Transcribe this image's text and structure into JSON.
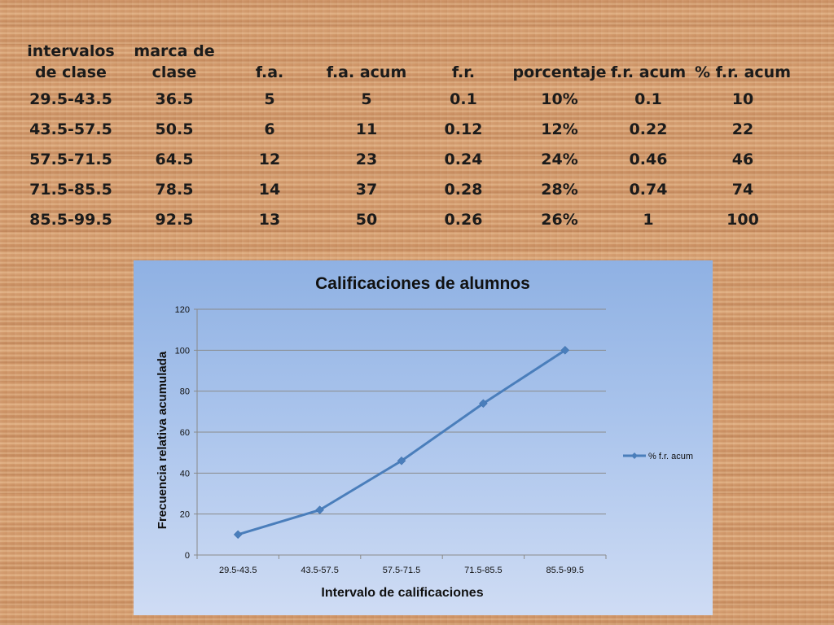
{
  "table": {
    "headers": [
      [
        "intervalos",
        "de clase"
      ],
      [
        "marca de",
        "clase"
      ],
      [
        "",
        "f.a."
      ],
      [
        "",
        "f.a. acum"
      ],
      [
        "",
        "f.r."
      ],
      [
        "",
        "porcentaje"
      ],
      [
        "",
        "f.r. acum"
      ],
      [
        "",
        "% f.r. acum"
      ]
    ],
    "rows": [
      [
        "29.5-43.5",
        "36.5",
        "5",
        "5",
        "0.1",
        "10%",
        "0.1",
        "10"
      ],
      [
        "43.5-57.5",
        "50.5",
        "6",
        "11",
        "0.12",
        "12%",
        "0.22",
        "22"
      ],
      [
        "57.5-71.5",
        "64.5",
        "12",
        "23",
        "0.24",
        "24%",
        "0.46",
        "46"
      ],
      [
        "71.5-85.5",
        "78.5",
        "14",
        "37",
        "0.28",
        "28%",
        "0.74",
        "74"
      ],
      [
        "85.5-99.5",
        "92.5",
        "13",
        "50",
        "0.26",
        "26%",
        "1",
        "100"
      ]
    ]
  },
  "chart_data": {
    "type": "line",
    "title": "Calificaciones de alumnos",
    "xlabel": "Intervalo de calificaciones",
    "ylabel": "Frecuencia relativa acumulada",
    "categories": [
      "29.5-43.5",
      "43.5-57.5",
      "57.5-71.5",
      "71.5-85.5",
      "85.5-99.5"
    ],
    "yticks": [
      "0",
      "20",
      "40",
      "60",
      "80",
      "100",
      "120"
    ],
    "ylim": [
      0,
      120
    ],
    "grid": true,
    "legend_position": "right",
    "series": [
      {
        "name": "% f.r. acum",
        "values": [
          10,
          22,
          46,
          74,
          100
        ],
        "color": "#4a7ebb"
      }
    ]
  }
}
